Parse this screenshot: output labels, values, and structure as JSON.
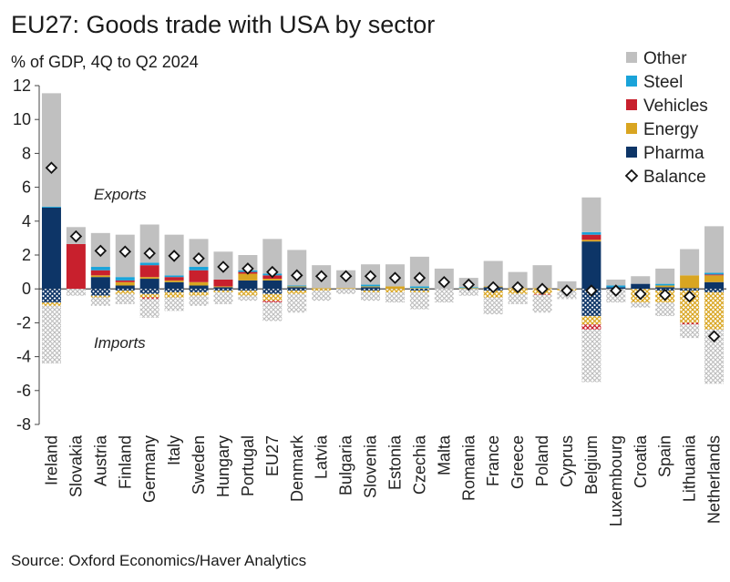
{
  "title": "EU27: Goods trade with USA by sector",
  "subtitle": "% of GDP, 4Q to Q2 2024",
  "source": "Source: Oxford Economics/Haver Analytics",
  "chart_data": {
    "type": "bar",
    "stacked": true,
    "ylim": [
      -8,
      12
    ],
    "yticks": [
      -8,
      -6,
      -4,
      -2,
      0,
      2,
      4,
      6,
      8,
      10,
      12
    ],
    "annotations": {
      "exports": "Exports",
      "imports": "Imports"
    },
    "legend": [
      {
        "name": "Other",
        "color": "#c0c0c0"
      },
      {
        "name": "Steel",
        "color": "#1aa3d9"
      },
      {
        "name": "Vehicles",
        "color": "#c8202d"
      },
      {
        "name": "Energy",
        "color": "#d9a521"
      },
      {
        "name": "Pharma",
        "color": "#0d3567"
      },
      {
        "name": "Balance",
        "marker": "diamond"
      }
    ],
    "categories": [
      "Ireland",
      "Slovakia",
      "Austria",
      "Finland",
      "Germany",
      "Italy",
      "Sweden",
      "Hungary",
      "Portugal",
      "EU27",
      "Denmark",
      "Latvia",
      "Bulgaria",
      "Slovenia",
      "Estonia",
      "Czechia",
      "Malta",
      "Romania",
      "France",
      "Greece",
      "Poland",
      "Cyprus",
      "Belgium",
      "Luxembourg",
      "Croatia",
      "Spain",
      "Lithuania",
      "Netherlands"
    ],
    "exports": [
      {
        "name": "Pharma",
        "values": [
          4.8,
          0,
          0.7,
          0.2,
          0.6,
          0.4,
          0.2,
          0.1,
          0.5,
          0.5,
          0.1,
          0,
          0,
          0.1,
          0,
          0,
          0,
          0,
          0.1,
          0,
          0,
          0,
          2.8,
          0.1,
          0.3,
          0.1,
          0.05,
          0.4
        ]
      },
      {
        "name": "Energy",
        "values": [
          0,
          0,
          0.1,
          0.2,
          0.1,
          0.1,
          0.2,
          0.05,
          0.4,
          0.1,
          0.05,
          0.05,
          0.05,
          0.05,
          0.15,
          0.05,
          0,
          0.05,
          0.05,
          0.05,
          0.05,
          0,
          0.1,
          0,
          0,
          0.1,
          0.75,
          0.4
        ]
      },
      {
        "name": "Vehicles",
        "values": [
          0,
          2.65,
          0.3,
          0.1,
          0.7,
          0.2,
          0.7,
          0.4,
          0.1,
          0.2,
          0,
          0,
          0,
          0,
          0,
          0,
          0,
          0,
          0,
          0,
          0,
          0,
          0.3,
          0,
          0,
          0,
          0,
          0.05
        ]
      },
      {
        "name": "Steel",
        "values": [
          0.05,
          0,
          0.2,
          0.2,
          0.15,
          0.1,
          0.2,
          0,
          0.1,
          0.1,
          0.05,
          0,
          0,
          0.1,
          0,
          0.1,
          0,
          0.05,
          0,
          0,
          0,
          0,
          0.15,
          0.1,
          0,
          0.1,
          0,
          0.1
        ]
      },
      {
        "name": "Other",
        "values": [
          6.7,
          1,
          2,
          2.5,
          2.25,
          2.4,
          1.65,
          1.65,
          0.9,
          2.05,
          2.1,
          1.35,
          1.05,
          1.2,
          1.3,
          1.75,
          1.2,
          0.55,
          1.5,
          0.95,
          1.35,
          0.45,
          2.05,
          0.35,
          0.45,
          0.9,
          1.55,
          2.75
        ]
      }
    ],
    "imports": [
      {
        "name": "Pharma",
        "values": [
          -0.8,
          0,
          -0.4,
          -0.1,
          -0.3,
          -0.2,
          -0.2,
          -0.1,
          -0.1,
          -0.3,
          -0.1,
          0,
          0,
          -0.1,
          0,
          -0.1,
          0,
          0,
          -0.1,
          0,
          0,
          0,
          -1.6,
          0,
          0,
          -0.1,
          -0.1,
          -0.2
        ]
      },
      {
        "name": "Energy",
        "values": [
          -0.2,
          0,
          -0.1,
          -0.2,
          -0.2,
          -0.3,
          -0.2,
          -0.1,
          -0.3,
          -0.4,
          -0.2,
          -0.1,
          0,
          -0.1,
          -0.2,
          -0.1,
          0,
          0,
          -0.4,
          -0.3,
          -0.3,
          -0.1,
          -0.5,
          0,
          -0.8,
          -0.7,
          -1.9,
          -2.2
        ]
      },
      {
        "name": "Vehicles",
        "values": [
          0,
          0,
          0,
          0,
          -0.1,
          0,
          0,
          0,
          0,
          -0.1,
          0,
          0,
          0,
          0,
          0,
          0,
          0,
          0,
          0,
          0,
          -0.05,
          0,
          -0.3,
          0,
          0,
          0,
          -0.1,
          0
        ]
      },
      {
        "name": "Steel",
        "values": [
          0,
          0,
          0,
          0,
          0,
          0,
          0,
          0,
          0,
          0,
          0,
          0,
          0,
          0,
          0,
          0,
          0,
          0,
          0,
          0,
          0,
          0,
          0,
          0,
          0,
          0,
          0,
          0
        ]
      },
      {
        "name": "Other",
        "values": [
          -3.4,
          -0.4,
          -0.5,
          -0.6,
          -1.1,
          -0.8,
          -0.6,
          -0.7,
          -0.3,
          -1.1,
          -1.1,
          -0.6,
          -0.3,
          -0.5,
          -0.6,
          -1,
          -0.8,
          -0.4,
          -1,
          -0.6,
          -1.05,
          -0.5,
          -3.1,
          -0.8,
          -0.3,
          -0.8,
          -0.8,
          -3.2
        ]
      }
    ],
    "balance": [
      7.15,
      3.1,
      2.25,
      2.2,
      2.1,
      1.95,
      1.8,
      1.3,
      1.2,
      1.0,
      0.8,
      0.75,
      0.75,
      0.75,
      0.65,
      0.65,
      0.4,
      0.25,
      0.1,
      0.1,
      0,
      -0.1,
      -0.1,
      -0.1,
      -0.3,
      -0.35,
      -0.45,
      -2.8
    ]
  }
}
